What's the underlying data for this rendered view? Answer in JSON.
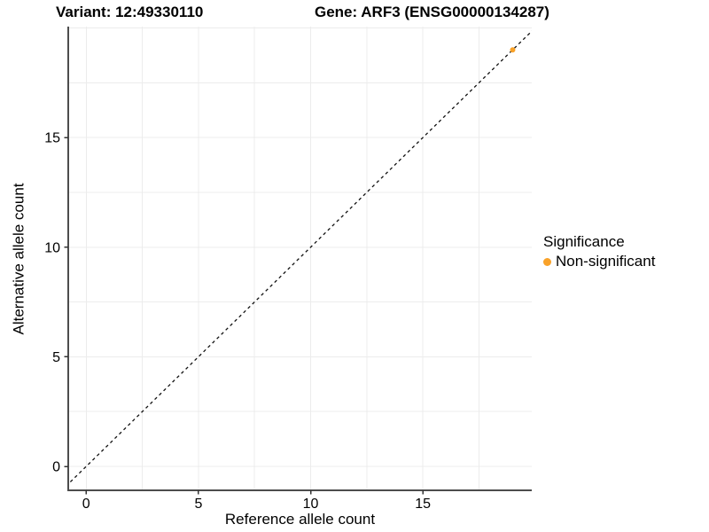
{
  "titles": {
    "variant": "Variant: 12:49330110",
    "gene": "Gene: ARF3 (ENSG00000134287)"
  },
  "axes": {
    "x": {
      "title": "Reference allele count"
    },
    "y": {
      "title": "Alternative allele count"
    }
  },
  "legend": {
    "title": "Significance",
    "entries": [
      {
        "label": "Non-significant",
        "color": "#F9A229"
      }
    ]
  },
  "colors": {
    "point": "#F9A229",
    "grid": "#ECECEC",
    "axis_line": "#4D4D4D",
    "tick": "#333333",
    "reference_line": "#111111",
    "text": "#000000",
    "background": "#FFFFFF"
  },
  "chart_data": {
    "type": "scatter",
    "title": "Variant: 12:49330110   /   Gene: ARF3 (ENSG00000134287)",
    "xlabel": "Reference allele count",
    "ylabel": "Alternative allele count",
    "xlim": [
      -0.8,
      19.85
    ],
    "ylim": [
      -1.09,
      20.06
    ],
    "x_ticks": [
      0,
      5,
      10,
      15
    ],
    "y_ticks": [
      0,
      5,
      10,
      15
    ],
    "grid_interval": 2.5,
    "grid": true,
    "series": [
      {
        "name": "Non-significant",
        "color": "#F9A229",
        "points": [
          {
            "x": 19,
            "y": 19
          }
        ]
      }
    ],
    "reference_line": {
      "type": "identity",
      "equation": "y = x",
      "style": "dashed",
      "color": "#111111"
    },
    "legend_title": "Significance",
    "legend_position": "right"
  }
}
